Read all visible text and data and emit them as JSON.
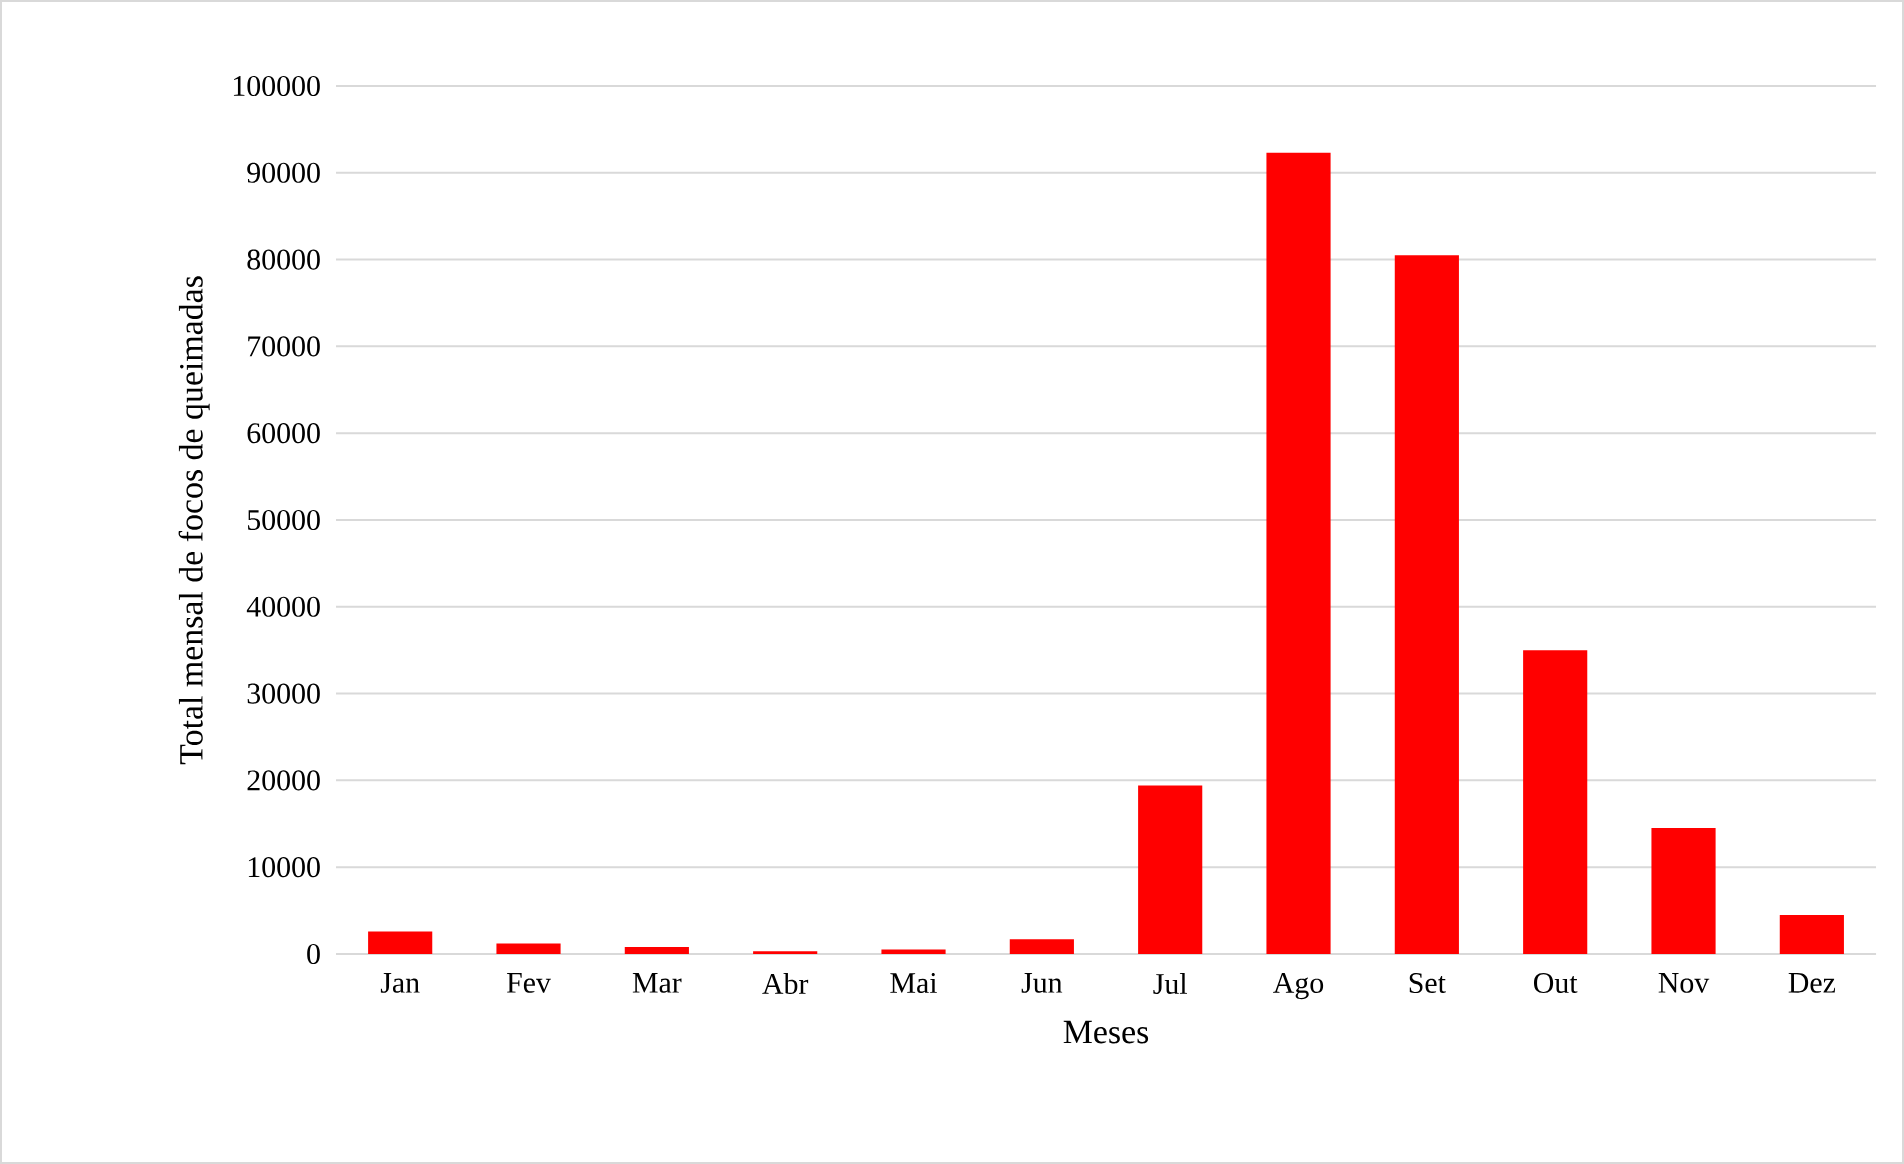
{
  "chart_data": {
    "type": "bar",
    "xlabel": "Meses",
    "ylabel": "Total mensal de focos de queimadas",
    "categories": [
      "Jan",
      "Fev",
      "Mar",
      "Abr",
      "Mai",
      "Jun",
      "Jul",
      "Ago",
      "Set",
      "Out",
      "Nov",
      "Dez"
    ],
    "values": [
      2600,
      1200,
      800,
      300,
      500,
      1700,
      19400,
      92300,
      80500,
      35000,
      14500,
      4500
    ],
    "color": "#ff0000",
    "ylim": [
      0,
      100000
    ],
    "yticks": [
      0,
      10000,
      20000,
      30000,
      40000,
      50000,
      60000,
      70000,
      80000,
      90000,
      100000
    ],
    "grid": "y"
  }
}
